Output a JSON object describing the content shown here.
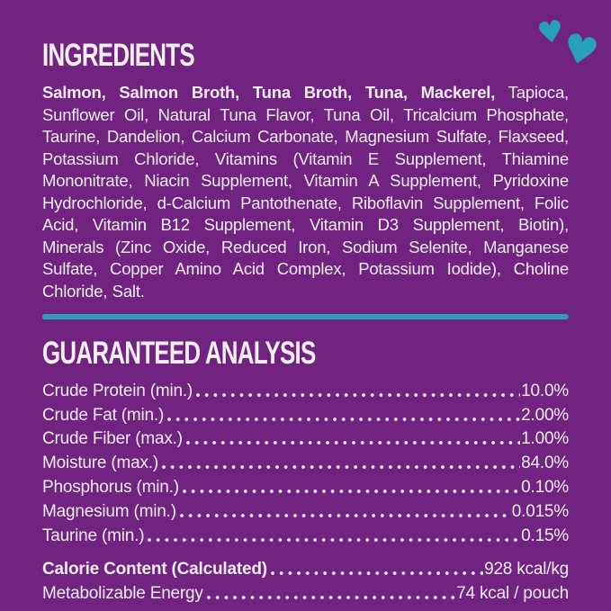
{
  "colors": {
    "background": "#712380",
    "accent_teal": "#2b9fba",
    "text": "#f3ecf4"
  },
  "decor": {
    "heart_glyph": "♥"
  },
  "ingredients": {
    "heading": "INGREDIENTS",
    "primary": "Salmon, Salmon Broth, Tuna Broth, Tuna, Mackerel,",
    "secondary": " Tapioca, Sunflower Oil, Natural Tuna Flavor, Tuna Oil, Tricalcium Phosphate, Taurine, Dandelion, Calcium Carbonate, Magnesium Sulfate, Flaxseed, Potassium Chloride, Vitamins (Vitamin E Supplement, Thiamine Mononitrate, Niacin Supplement, Vitamin A Supplement, Pyridoxine Hydrochloride, d-Calcium Pantothenate, Riboflavin Supplement, Folic Acid, Vitamin B12 Supplement, Vitamin D3 Supplement, Biotin), Minerals (Zinc Oxide, Reduced Iron, Sodium Selenite, Manganese Sulfate, Copper Amino Acid Complex, Potassium Iodide), Choline Chloride, Salt."
  },
  "analysis": {
    "heading": "GUARANTEED ANALYSIS",
    "rows": [
      {
        "label": "Crude Protein (min.)",
        "value": "10.0%"
      },
      {
        "label": "Crude Fat (min.)",
        "value": "2.00%"
      },
      {
        "label": "Crude Fiber (max.)",
        "value": "1.00%"
      },
      {
        "label": "Moisture (max.)",
        "value": "84.0%"
      },
      {
        "label": "Phosphorus (min.)",
        "value": "0.10%"
      },
      {
        "label": "Magnesium (min.)",
        "value": "0.015%"
      },
      {
        "label": "Taurine (min.)",
        "value": "0.15%"
      }
    ],
    "calorie_rows": [
      {
        "label": "Calorie Content (Calculated)",
        "value": "928 kcal/kg",
        "bold": true
      },
      {
        "label": "Metabolizable Energy",
        "value": "74 kcal / pouch",
        "bold": false
      }
    ]
  }
}
